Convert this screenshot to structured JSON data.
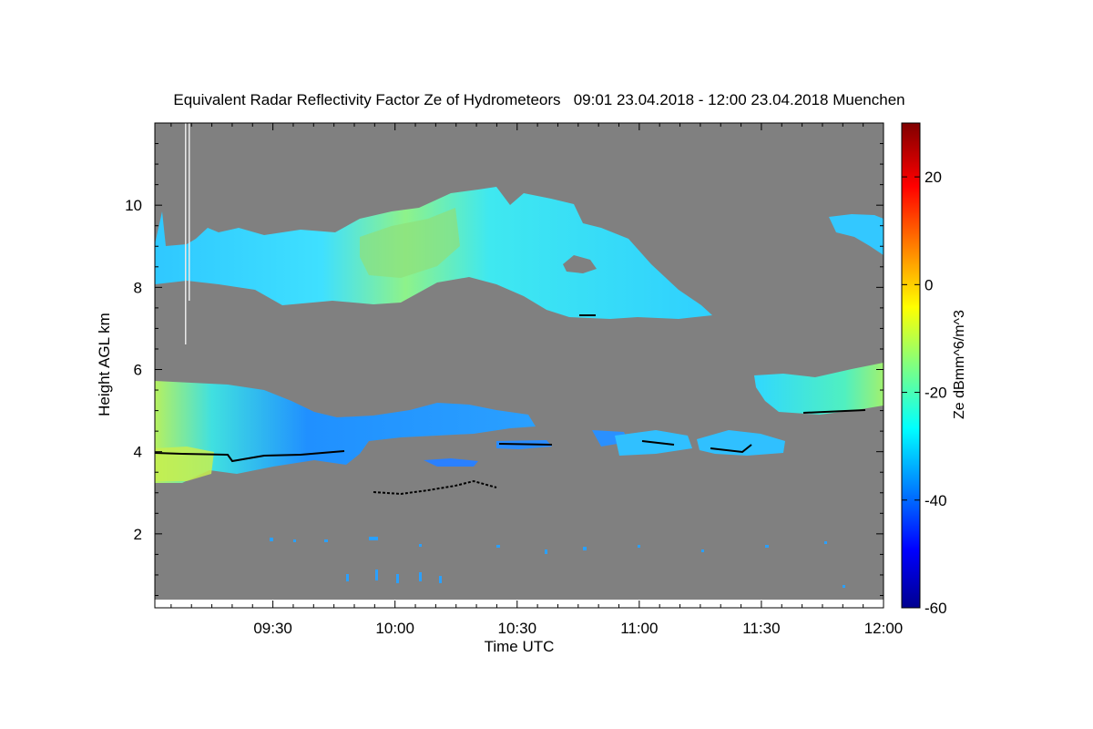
{
  "chart_data": {
    "type": "heatmap",
    "title": "Equivalent Radar Reflectivity Factor Ze of Hydrometeors   09:01 23.04.2018 - 12:00 23.04.2018 Muenchen",
    "xlabel": "Time UTC",
    "ylabel": "Height AGL km",
    "x_ticks": [
      "09:30",
      "10:00",
      "10:30",
      "11:00",
      "11:30",
      "12:00"
    ],
    "x_tick_values": [
      30,
      60,
      90,
      120,
      150,
      180
    ],
    "xlim": [
      1,
      180
    ],
    "y_ticks": [
      2,
      4,
      6,
      8,
      10
    ],
    "ylim": [
      0.2,
      12
    ],
    "colorbar": {
      "label": "Ze dBmm^6/m^3",
      "ticks": [
        20,
        0,
        -20,
        -40,
        -60
      ],
      "range": [
        -60,
        30
      ],
      "colormap": "jet"
    },
    "background_color": "#808080",
    "features": [
      {
        "name": "upper cirrus layer",
        "time_start": 1,
        "time_end": 141,
        "height_bottom": 7.2,
        "height_top": 10.4,
        "peak_ze": -15
      },
      {
        "name": "upper cloud patch",
        "time_start": 168,
        "time_end": 180,
        "height_bottom": 8.8,
        "height_top": 9.8,
        "peak_ze": -30
      },
      {
        "name": "mid-level layer",
        "time_start": 1,
        "time_end": 95,
        "height_bottom": 3.0,
        "height_top": 5.6,
        "peak_ze": -10
      },
      {
        "name": "mid-level fragments",
        "time_start": 120,
        "time_end": 157,
        "height_bottom": 3.8,
        "height_top": 4.4,
        "peak_ze": -30
      },
      {
        "name": "mid-level layer east",
        "time_start": 153,
        "time_end": 180,
        "height_bottom": 4.8,
        "height_top": 6.0,
        "peak_ze": -15
      }
    ]
  }
}
